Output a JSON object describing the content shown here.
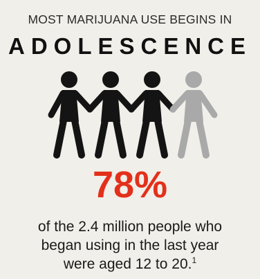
{
  "headline": "MOST MARIJUANA USE BEGINS IN",
  "headline_emphasis": "ADOLESCENCE",
  "figures": {
    "icon": "paper-doll-chain-icon",
    "dark_count": 3,
    "light_count": 1,
    "dark_color": "#141414",
    "light_color": "#a9a9a9"
  },
  "stat": "78%",
  "stat_color": "#e3301b",
  "caption": {
    "line1": "of the 2.4 million people who",
    "line2": "began using in the last year",
    "line3": "were aged 12 to 20.",
    "footnote": "1"
  }
}
